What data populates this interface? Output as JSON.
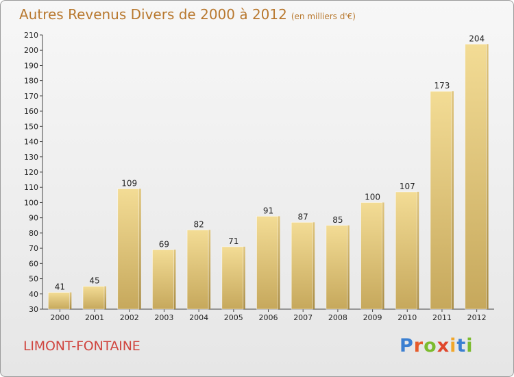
{
  "header": {
    "title": "Autres Revenus Divers de 2000 à 2012",
    "subtitle": "(en milliers d'€)"
  },
  "footer": {
    "location": "LIMONT-FONTAINE",
    "logo_letters": [
      "P",
      "r",
      "o",
      "x",
      "i",
      "t",
      "i"
    ]
  },
  "colors": {
    "title": "#b8782e",
    "location": "#d0453f",
    "bar_light": "#f3dc95",
    "bar_dark": "#c6a85c"
  },
  "chart_data": {
    "type": "bar",
    "title": "Autres Revenus Divers de 2000 à 2012",
    "subtitle": "(en milliers d'€)",
    "categories": [
      "2000",
      "2001",
      "2002",
      "2003",
      "2004",
      "2005",
      "2006",
      "2007",
      "2008",
      "2009",
      "2010",
      "2011",
      "2012"
    ],
    "values": [
      41,
      45,
      109,
      69,
      82,
      71,
      91,
      87,
      85,
      100,
      107,
      173,
      204
    ],
    "ylim": [
      30,
      210
    ],
    "yticks": [
      30,
      40,
      50,
      60,
      70,
      80,
      90,
      100,
      110,
      120,
      130,
      140,
      150,
      160,
      170,
      180,
      190,
      200,
      210
    ],
    "grid": false,
    "data_labels": true
  }
}
